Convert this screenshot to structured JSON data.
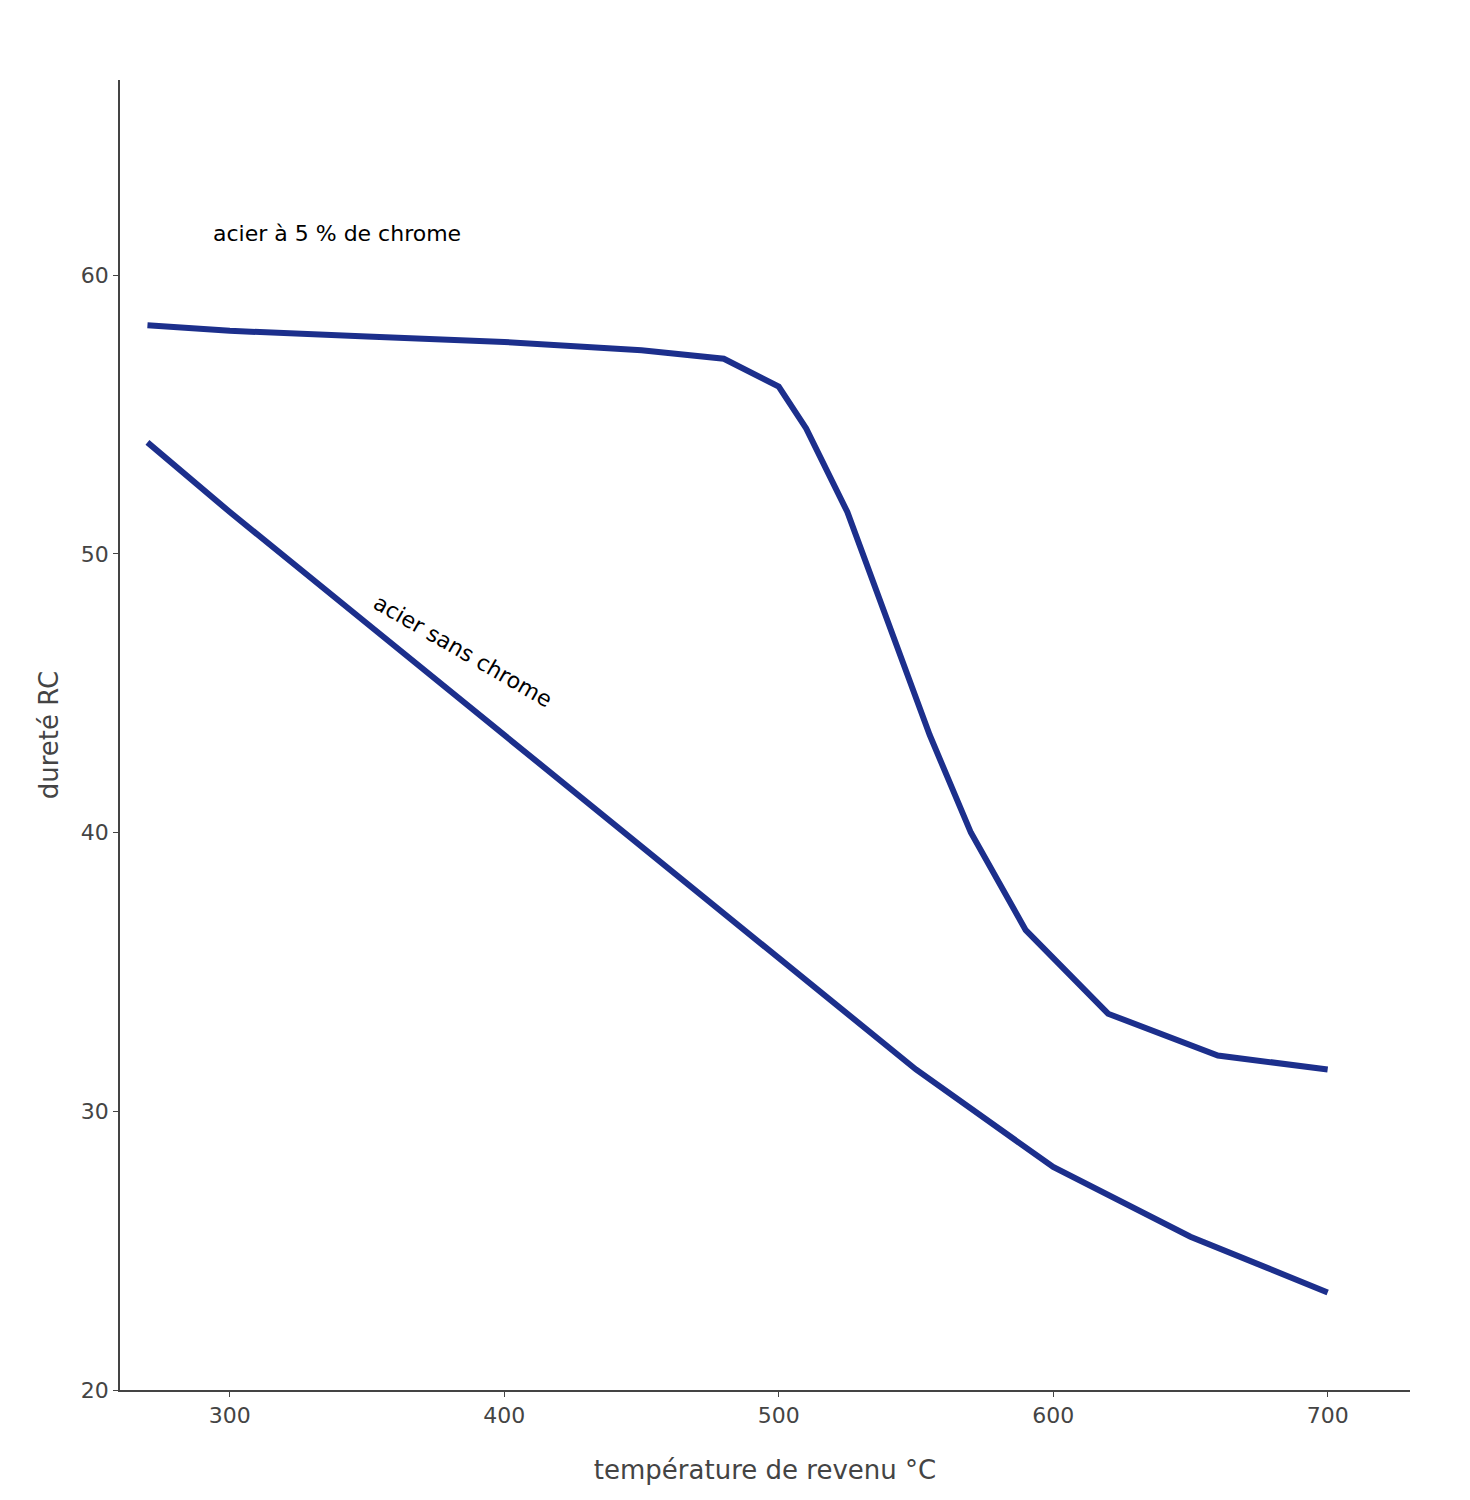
{
  "chart_data": {
    "type": "line",
    "x_label": "température de revenu °C",
    "y_label": "dureté RC",
    "xlim": [
      260,
      730
    ],
    "ylim": [
      20,
      67
    ],
    "xticks": [
      300,
      400,
      500,
      600,
      700
    ],
    "yticks": [
      20,
      30,
      40,
      50,
      60
    ],
    "grid": false,
    "series": [
      {
        "color": "#1c2f8c",
        "x": [
          270,
          300,
          350,
          400,
          450,
          480,
          500,
          510,
          525,
          540,
          555,
          570,
          590,
          620,
          660,
          700
        ],
        "values": [
          58.2,
          58.0,
          57.8,
          57.6,
          57.3,
          57.0,
          56.0,
          54.5,
          51.5,
          47.5,
          43.5,
          40.0,
          36.5,
          33.5,
          32.0,
          31.5
        ]
      },
      {
        "color": "#1c2f8c",
        "x": [
          270,
          300,
          350,
          400,
          450,
          500,
          550,
          600,
          650,
          700
        ],
        "values": [
          54.0,
          51.5,
          47.5,
          43.5,
          39.5,
          35.5,
          31.5,
          28.0,
          25.5,
          23.5
        ]
      }
    ],
    "annotations": [
      {
        "text": "acier à 5 % de chrome",
        "x": 293,
        "y": 61.5
      },
      {
        "text": "acier sans chrome",
        "x": 350,
        "y": 46.5
      }
    ]
  }
}
